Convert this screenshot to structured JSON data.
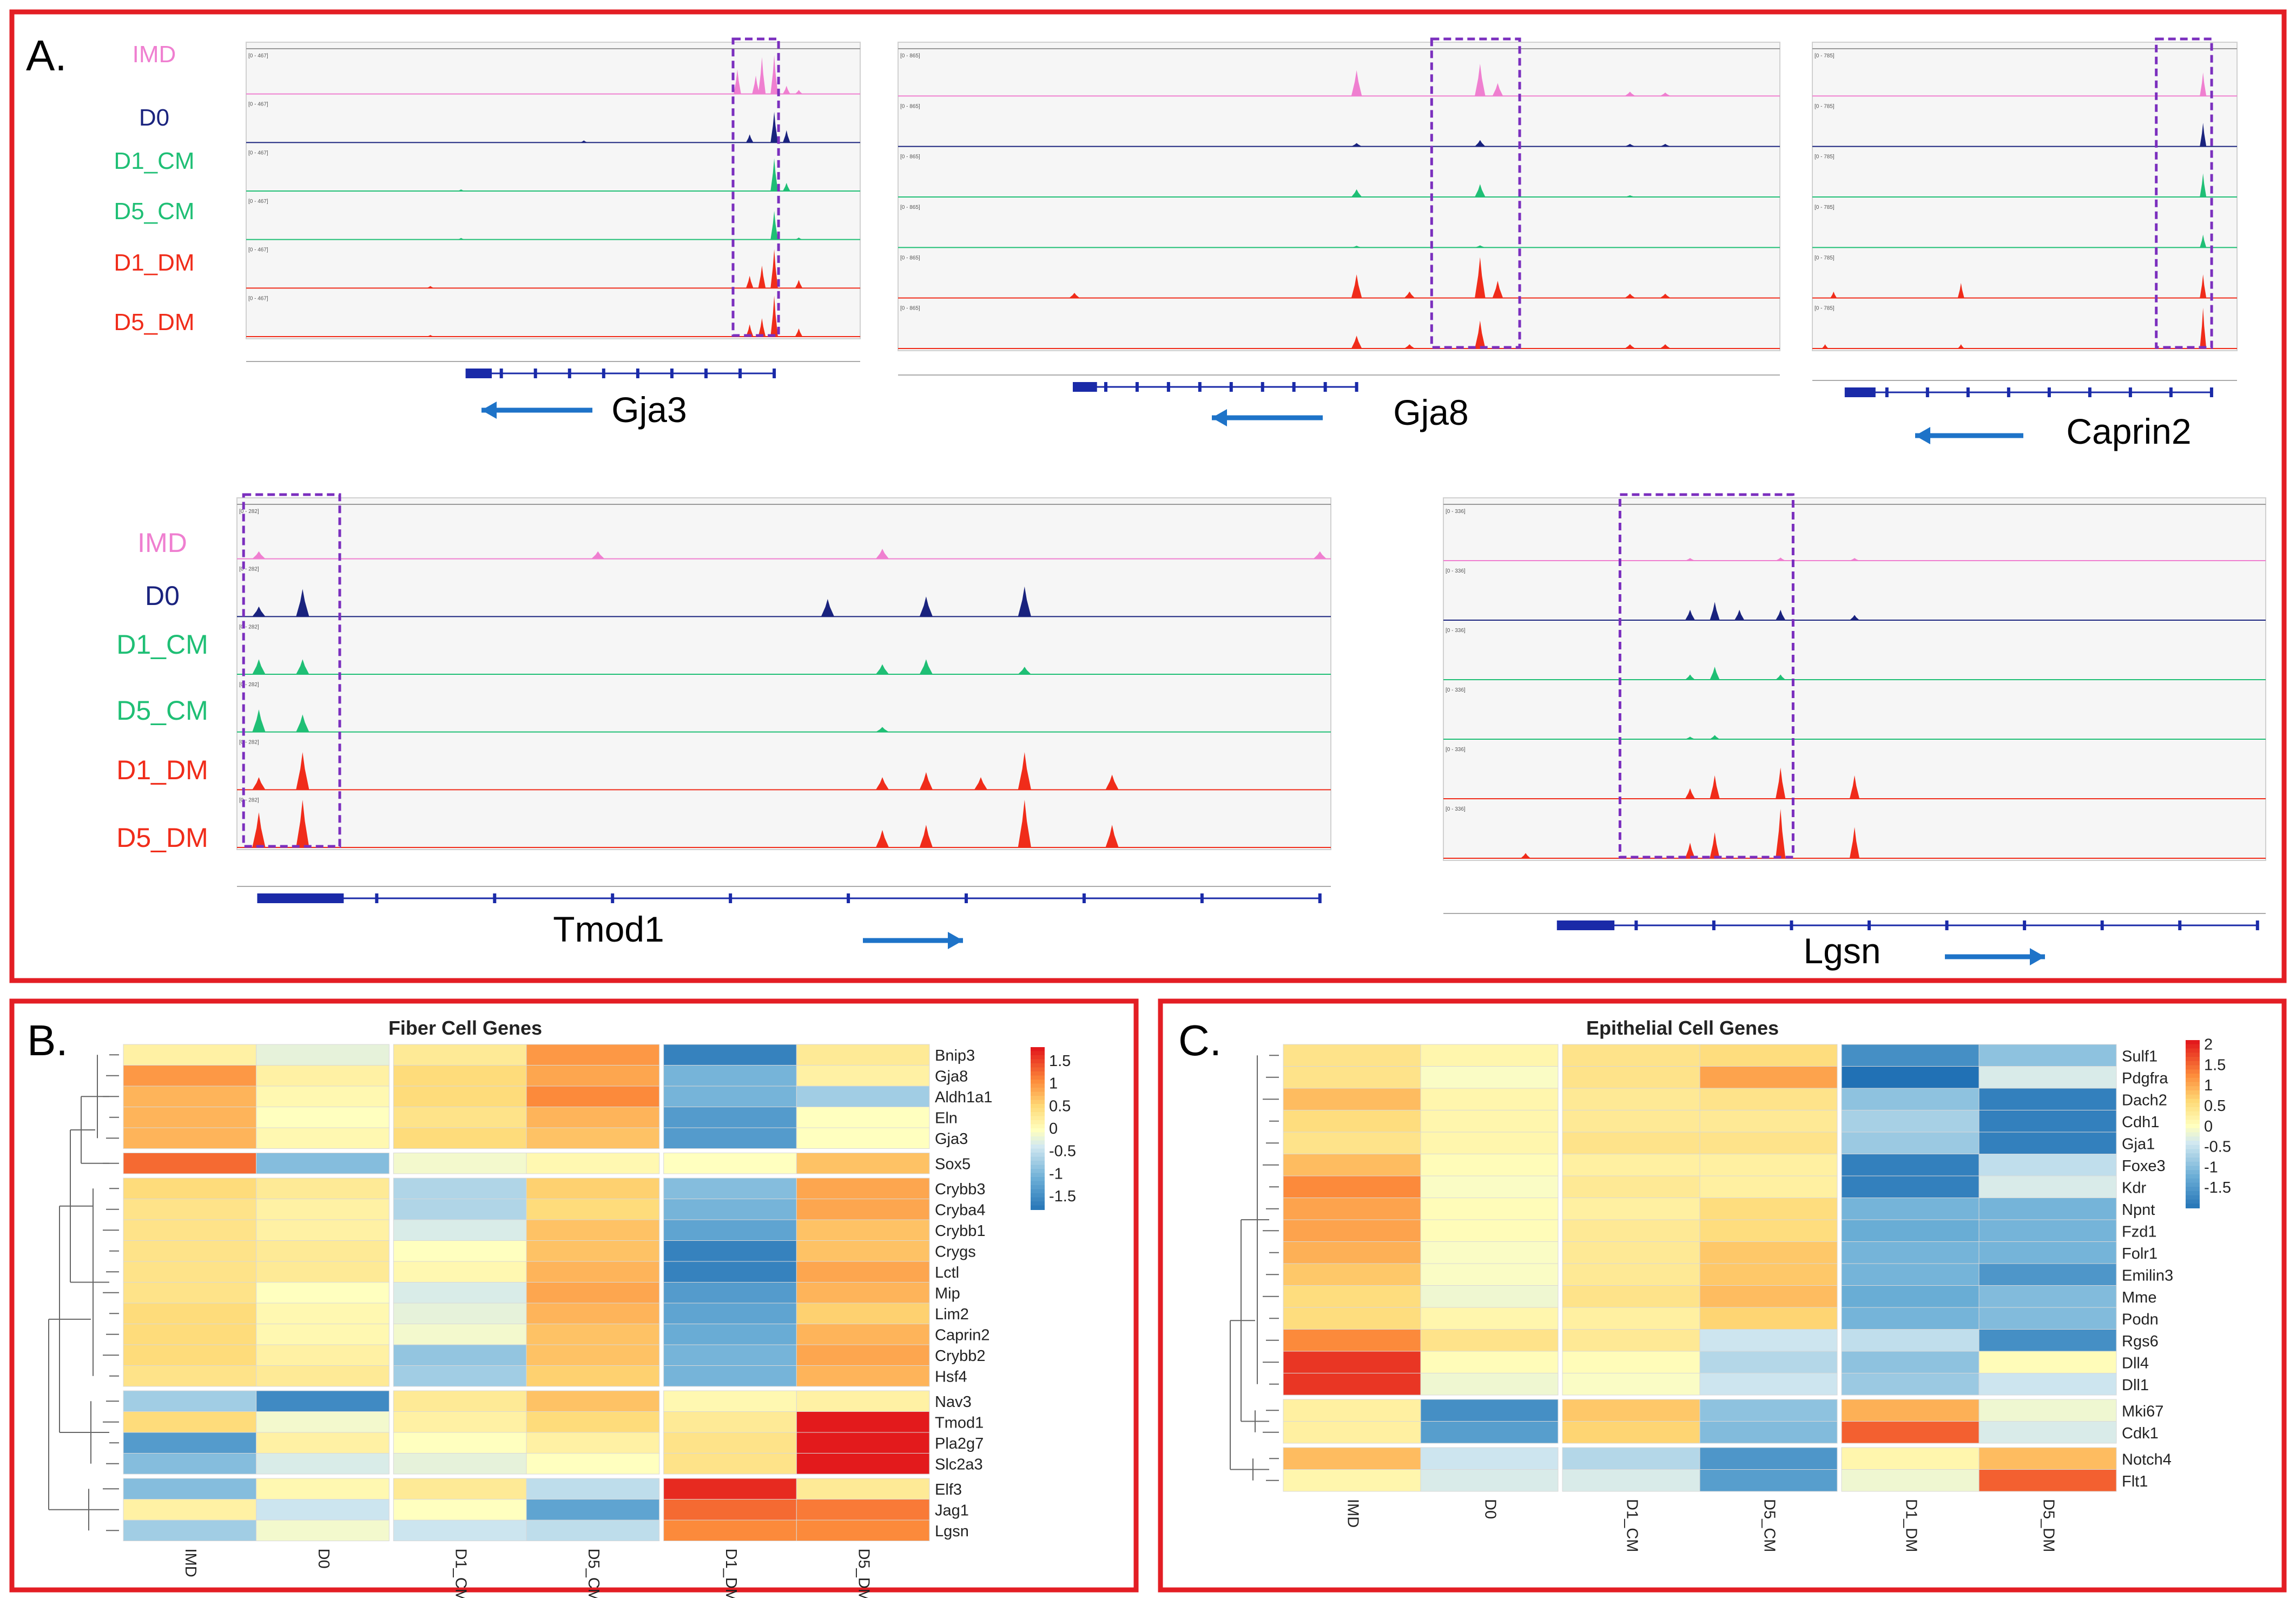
{
  "panels": {
    "a": {
      "letter": "A."
    },
    "b": {
      "letter": "B.",
      "title": "Fiber Cell Genes"
    },
    "c": {
      "letter": "C.",
      "title": "Epithelial Cell Genes"
    }
  },
  "samples": [
    "IMD",
    "D0",
    "D1_CM",
    "D5_CM",
    "D1_DM",
    "D5_DM"
  ],
  "sample_colors": [
    "#ef7fd0",
    "#1a237e",
    "#1fbf75",
    "#1fbf75",
    "#f02c1a",
    "#f02c1a"
  ],
  "browser_tracks": [
    {
      "gene": "Gja3",
      "direction": "left",
      "scale_label": "[0 - 467]",
      "peaks": [
        [
          [
            0.8,
            0.6
          ],
          [
            0.83,
            0.45
          ],
          [
            0.84,
            0.9
          ],
          [
            0.86,
            0.95
          ],
          [
            0.88,
            0.2
          ],
          [
            0.9,
            0.1
          ]
        ],
        [
          [
            0.55,
            0.05
          ],
          [
            0.82,
            0.2
          ],
          [
            0.86,
            0.75
          ],
          [
            0.88,
            0.3
          ]
        ],
        [
          [
            0.35,
            0.04
          ],
          [
            0.86,
            0.8
          ],
          [
            0.88,
            0.2
          ]
        ],
        [
          [
            0.35,
            0.04
          ],
          [
            0.86,
            0.7
          ],
          [
            0.9,
            0.05
          ]
        ],
        [
          [
            0.3,
            0.05
          ],
          [
            0.82,
            0.3
          ],
          [
            0.84,
            0.55
          ],
          [
            0.86,
            0.95
          ],
          [
            0.9,
            0.2
          ]
        ],
        [
          [
            0.3,
            0.04
          ],
          [
            0.82,
            0.3
          ],
          [
            0.84,
            0.45
          ],
          [
            0.86,
            1.0
          ],
          [
            0.9,
            0.2
          ]
        ]
      ]
    },
    {
      "gene": "Gja8",
      "direction": "left",
      "scale_label": "[0 - 865]",
      "peaks": [
        [
          [
            0.52,
            0.6
          ],
          [
            0.66,
            0.75
          ],
          [
            0.68,
            0.3
          ],
          [
            0.83,
            0.1
          ],
          [
            0.87,
            0.08
          ]
        ],
        [
          [
            0.52,
            0.08
          ],
          [
            0.66,
            0.15
          ],
          [
            0.83,
            0.06
          ],
          [
            0.87,
            0.06
          ]
        ],
        [
          [
            0.52,
            0.18
          ],
          [
            0.66,
            0.3
          ],
          [
            0.83,
            0.04
          ]
        ],
        [
          [
            0.52,
            0.04
          ],
          [
            0.66,
            0.05
          ]
        ],
        [
          [
            0.2,
            0.12
          ],
          [
            0.52,
            0.55
          ],
          [
            0.58,
            0.15
          ],
          [
            0.66,
            0.95
          ],
          [
            0.68,
            0.4
          ],
          [
            0.83,
            0.1
          ],
          [
            0.87,
            0.1
          ]
        ],
        [
          [
            0.52,
            0.3
          ],
          [
            0.58,
            0.1
          ],
          [
            0.66,
            0.65
          ],
          [
            0.83,
            0.1
          ],
          [
            0.87,
            0.1
          ]
        ]
      ]
    },
    {
      "gene": "Caprin2",
      "direction": "left",
      "scale_label": "[0 - 785]",
      "peaks": [
        [
          [
            0.92,
            0.55
          ]
        ],
        [
          [
            0.92,
            0.55
          ]
        ],
        [
          [
            0.92,
            0.55
          ]
        ],
        [
          [
            0.92,
            0.3
          ]
        ],
        [
          [
            0.05,
            0.15
          ],
          [
            0.35,
            0.35
          ],
          [
            0.92,
            0.55
          ]
        ],
        [
          [
            0.03,
            0.1
          ],
          [
            0.35,
            0.1
          ],
          [
            0.92,
            0.95
          ]
        ]
      ]
    },
    {
      "gene": "Tmod1",
      "direction": "right",
      "scale_label": "[0 - 282]",
      "peaks": [
        [
          [
            0.02,
            0.15
          ],
          [
            0.33,
            0.15
          ],
          [
            0.59,
            0.2
          ],
          [
            0.99,
            0.15
          ]
        ],
        [
          [
            0.02,
            0.2
          ],
          [
            0.06,
            0.55
          ],
          [
            0.54,
            0.35
          ],
          [
            0.63,
            0.4
          ],
          [
            0.72,
            0.6
          ]
        ],
        [
          [
            0.02,
            0.3
          ],
          [
            0.06,
            0.3
          ],
          [
            0.59,
            0.2
          ],
          [
            0.63,
            0.3
          ],
          [
            0.72,
            0.15
          ]
        ],
        [
          [
            0.02,
            0.45
          ],
          [
            0.06,
            0.35
          ],
          [
            0.59,
            0.1
          ]
        ],
        [
          [
            0.02,
            0.25
          ],
          [
            0.06,
            0.75
          ],
          [
            0.59,
            0.25
          ],
          [
            0.63,
            0.35
          ],
          [
            0.68,
            0.25
          ],
          [
            0.72,
            0.75
          ],
          [
            0.8,
            0.3
          ]
        ],
        [
          [
            0.02,
            0.7
          ],
          [
            0.06,
            0.95
          ],
          [
            0.59,
            0.35
          ],
          [
            0.63,
            0.45
          ],
          [
            0.72,
            0.95
          ],
          [
            0.8,
            0.45
          ]
        ]
      ]
    },
    {
      "gene": "Lgsn",
      "direction": "right",
      "scale_label": "[0 - 336]",
      "peaks": [
        [
          [
            0.3,
            0.05
          ],
          [
            0.41,
            0.06
          ],
          [
            0.5,
            0.05
          ]
        ],
        [
          [
            0.3,
            0.2
          ],
          [
            0.33,
            0.35
          ],
          [
            0.36,
            0.2
          ],
          [
            0.41,
            0.2
          ],
          [
            0.5,
            0.1
          ]
        ],
        [
          [
            0.3,
            0.1
          ],
          [
            0.33,
            0.25
          ],
          [
            0.41,
            0.1
          ]
        ],
        [
          [
            0.3,
            0.05
          ],
          [
            0.33,
            0.08
          ]
        ],
        [
          [
            0.3,
            0.2
          ],
          [
            0.33,
            0.45
          ],
          [
            0.41,
            0.6
          ],
          [
            0.5,
            0.45
          ]
        ],
        [
          [
            0.1,
            0.1
          ],
          [
            0.3,
            0.3
          ],
          [
            0.33,
            0.5
          ],
          [
            0.41,
            0.95
          ],
          [
            0.5,
            0.6
          ]
        ]
      ]
    }
  ],
  "fiber_heatmap": {
    "genes": [
      "Bnip3",
      "Gja8",
      "Aldh1a1",
      "Eln",
      "Gja3",
      "Sox5",
      "Crybb3",
      "Cryba4",
      "Crybb1",
      "Crygs",
      "Lctl",
      "Mip",
      "Lim2",
      "Caprin2",
      "Crybb2",
      "Hsf4",
      "Nav3",
      "Tmod1",
      "Pla2g7",
      "Slc2a3",
      "Elf3",
      "Jag1",
      "Lgsn"
    ],
    "values": [
      [
        0.2,
        -0.2,
        0.3,
        1.0,
        -1.6,
        0.3
      ],
      [
        1.0,
        0.2,
        0.5,
        0.9,
        -1.0,
        0.2
      ],
      [
        0.8,
        0.1,
        0.5,
        1.1,
        -1.0,
        -0.7
      ],
      [
        0.8,
        0.0,
        0.4,
        0.8,
        -1.3,
        0.0
      ],
      [
        0.8,
        0.1,
        0.5,
        0.7,
        -1.3,
        0.0
      ],
      [
        1.3,
        -0.9,
        -0.1,
        0.1,
        0.0,
        0.7
      ],
      [
        0.5,
        0.3,
        -0.6,
        0.6,
        -0.9,
        0.9
      ],
      [
        0.4,
        0.2,
        -0.6,
        0.5,
        -1.0,
        0.9
      ],
      [
        0.4,
        0.2,
        -0.3,
        0.7,
        -1.2,
        0.7
      ],
      [
        0.4,
        0.3,
        0.0,
        0.7,
        -1.6,
        0.7
      ],
      [
        0.4,
        0.3,
        0.1,
        0.8,
        -1.6,
        0.9
      ],
      [
        0.4,
        0.0,
        -0.3,
        0.9,
        -1.3,
        0.8
      ],
      [
        0.5,
        0.1,
        -0.2,
        0.8,
        -1.2,
        0.6
      ],
      [
        0.5,
        0.1,
        -0.1,
        0.7,
        -1.1,
        0.8
      ],
      [
        0.5,
        0.2,
        -0.8,
        0.7,
        -1.0,
        0.9
      ],
      [
        0.4,
        0.3,
        -0.7,
        0.6,
        -1.0,
        0.8
      ],
      [
        -0.7,
        -1.5,
        0.3,
        0.7,
        0.1,
        0.2
      ],
      [
        0.5,
        -0.1,
        0.2,
        0.5,
        0.3,
        1.8
      ],
      [
        -1.3,
        0.2,
        0.0,
        0.2,
        0.4,
        1.8
      ],
      [
        -0.9,
        -0.3,
        -0.2,
        0.0,
        0.4,
        1.8
      ],
      [
        -0.9,
        0.1,
        0.3,
        -0.5,
        1.7,
        0.3
      ],
      [
        0.2,
        -0.4,
        0.0,
        -1.2,
        1.3,
        1.2
      ],
      [
        -0.7,
        -0.1,
        -0.4,
        -0.5,
        1.1,
        1.1
      ]
    ],
    "row_gaps_after": [
      4,
      5,
      15,
      19
    ],
    "legend": {
      "ticks": [
        "1.5",
        "1",
        "0.5",
        "0",
        "-0.5",
        "-1",
        "-1.5"
      ],
      "min": -1.8,
      "max": 1.8
    }
  },
  "epithelial_heatmap": {
    "genes": [
      "Sulf1",
      "Pdgfra",
      "Dach2",
      "Cdh1",
      "Gja1",
      "Foxe3",
      "Kdr",
      "Npnt",
      "Fzd1",
      "Folr1",
      "Emilin3",
      "Mme",
      "Podn",
      "Rgs6",
      "Dll4",
      "Dll1",
      "Mki67",
      "Cdk1",
      "Notch4",
      "Flt1"
    ],
    "values": [
      [
        0.5,
        0.2,
        0.5,
        0.6,
        -1.6,
        -0.9
      ],
      [
        0.5,
        0.0,
        0.5,
        1.1,
        -2.0,
        -0.3
      ],
      [
        0.9,
        0.2,
        0.4,
        0.5,
        -0.9,
        -1.8
      ],
      [
        0.6,
        0.2,
        0.4,
        0.4,
        -0.7,
        -1.8
      ],
      [
        0.5,
        0.2,
        0.5,
        0.5,
        -0.8,
        -1.8
      ],
      [
        0.9,
        0.1,
        0.3,
        0.3,
        -1.8,
        -0.5
      ],
      [
        1.3,
        0.0,
        0.4,
        0.3,
        -1.8,
        -0.3
      ],
      [
        1.1,
        0.1,
        0.3,
        0.6,
        -1.1,
        -1.1
      ],
      [
        1.1,
        0.1,
        0.4,
        0.6,
        -1.2,
        -1.1
      ],
      [
        1.0,
        0.0,
        0.4,
        0.8,
        -1.1,
        -1.1
      ],
      [
        0.8,
        0.0,
        0.4,
        0.8,
        -1.1,
        -1.5
      ],
      [
        0.6,
        -0.1,
        0.5,
        0.9,
        -1.2,
        -1.0
      ],
      [
        0.6,
        0.2,
        0.3,
        0.7,
        -1.1,
        -1.0
      ],
      [
        1.3,
        0.5,
        0.4,
        -0.4,
        -0.5,
        -1.6
      ],
      [
        1.9,
        0.1,
        0.1,
        -0.6,
        -0.9,
        0.1
      ],
      [
        1.9,
        -0.1,
        0.0,
        -0.4,
        -0.8,
        -0.4
      ],
      [
        0.3,
        -1.6,
        0.8,
        -0.9,
        1.0,
        -0.1
      ],
      [
        0.3,
        -1.4,
        0.7,
        -1.0,
        1.6,
        -0.3
      ],
      [
        0.9,
        -0.4,
        -0.6,
        -1.5,
        0.2,
        0.9
      ],
      [
        0.2,
        -0.3,
        -0.3,
        -1.4,
        -0.1,
        1.6
      ]
    ],
    "row_gaps_after": [
      15,
      17
    ],
    "legend": {
      "ticks": [
        "2",
        "1.5",
        "1",
        "0.5",
        "0",
        "-0.5",
        "-1",
        "-1.5"
      ],
      "min": -2.0,
      "max": 2.1
    }
  }
}
